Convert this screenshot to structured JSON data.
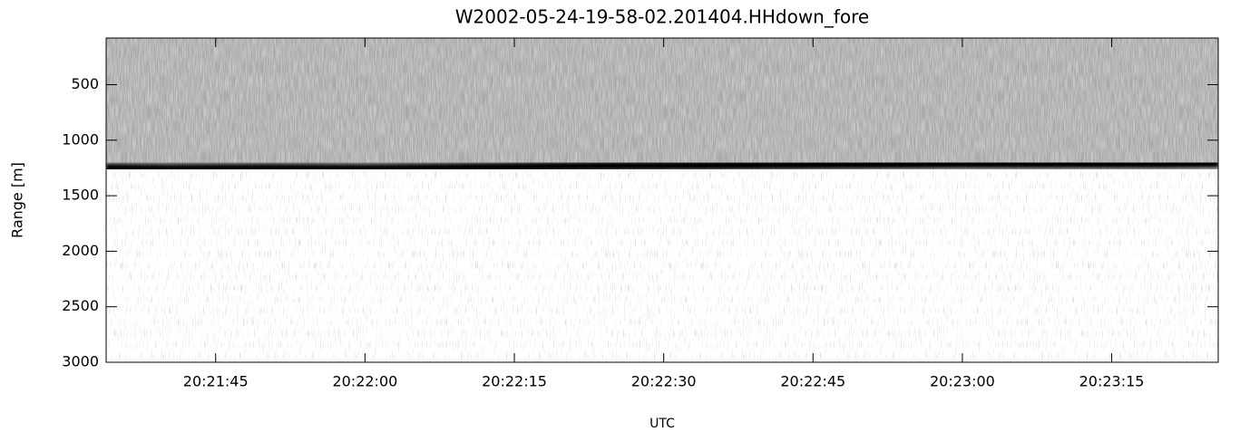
{
  "chart_data": {
    "type": "radar-image",
    "title": "W2002-05-24-19-58-02.201404.HHdown_fore",
    "xlabel": "UTC",
    "ylabel": "Range [m]",
    "xlim": [
      73294,
      73405.7
    ],
    "xticks": [
      {
        "value": 73305,
        "label": "20:21:45"
      },
      {
        "value": 73320,
        "label": "20:22:00"
      },
      {
        "value": 73335,
        "label": "20:22:15"
      },
      {
        "value": 73350,
        "label": "20:22:30"
      },
      {
        "value": 73365,
        "label": "20:22:45"
      },
      {
        "value": 73380,
        "label": "20:23:00"
      },
      {
        "value": 73395,
        "label": "20:23:15"
      }
    ],
    "ylim": [
      3000,
      80
    ],
    "yticks": [
      500,
      1000,
      1500,
      2000,
      2500,
      3000
    ],
    "series": [
      {
        "name": "surface echo",
        "color": "#000000",
        "x": [
          73294,
          73300,
          73310,
          73320,
          73330,
          73340,
          73350,
          73360,
          73370,
          73380,
          73390,
          73400,
          73405.7
        ],
        "values": [
          1250,
          1255,
          1250,
          1255,
          1245,
          1235,
          1230,
          1225,
          1220,
          1215,
          1215,
          1215,
          1210
        ]
      }
    ]
  }
}
